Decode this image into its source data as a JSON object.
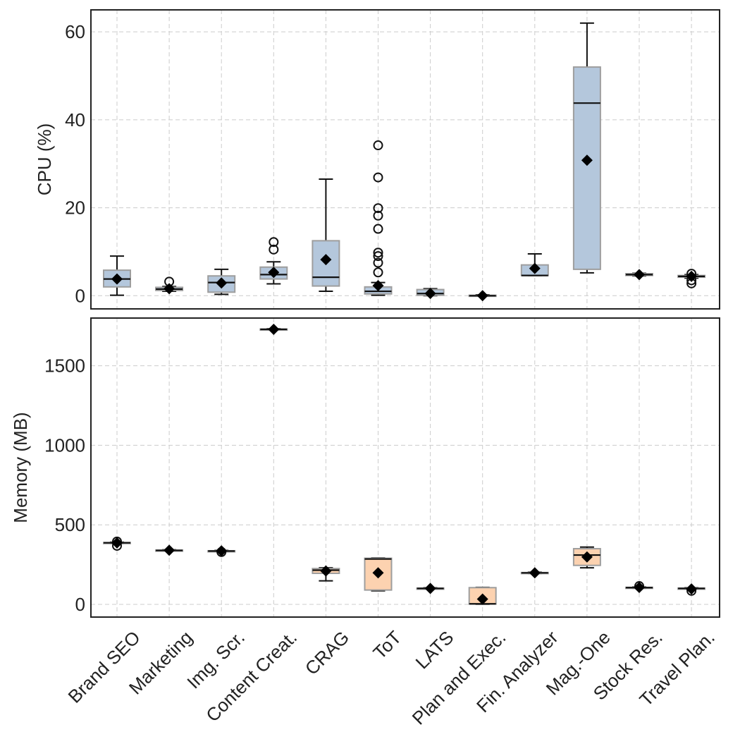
{
  "chart_data": [
    {
      "type": "box",
      "ylabel": "CPU (%)",
      "ylim": [
        -3,
        65
      ],
      "yticks": [
        0,
        20,
        40,
        60
      ],
      "box_color": "#b4c7dc",
      "categories": [
        "Brand SEO",
        "Marketing",
        "Img. Scr.",
        "Content Creat.",
        "CRAG",
        "ToT",
        "LATS",
        "Plan and Exec.",
        "Fin. Analyzer",
        "Mag.-One",
        "Stock Res.",
        "Travel Plan."
      ],
      "boxes": [
        {
          "q1": 2,
          "median": 3.8,
          "q3": 5.8,
          "whislo": 0.1,
          "whishi": 9,
          "mean": 3.8,
          "fliers": []
        },
        {
          "q1": 1.2,
          "median": 1.5,
          "q3": 1.9,
          "whislo": 1.0,
          "whishi": 2.1,
          "mean": 1.6,
          "fliers": [
            3.2
          ]
        },
        {
          "q1": 0.8,
          "median": 3.0,
          "q3": 4.5,
          "whislo": 0.3,
          "whishi": 6,
          "mean": 2.9,
          "fliers": []
        },
        {
          "q1": 3.8,
          "median": 4.8,
          "q3": 6.5,
          "whislo": 2.7,
          "whishi": 7.7,
          "mean": 5.3,
          "fliers": [
            10.5,
            12.2
          ]
        },
        {
          "q1": 2.2,
          "median": 4.2,
          "q3": 12.5,
          "whislo": 1.0,
          "whishi": 26.5,
          "mean": 8.2,
          "fliers": []
        },
        {
          "q1": 0.4,
          "median": 1.0,
          "q3": 2.0,
          "whislo": 0.1,
          "whishi": 3.0,
          "mean": 2.3,
          "fliers": [
            5.3,
            7.5,
            9.0,
            9.8,
            15.2,
            18.2,
            19.9,
            26.9,
            34.2
          ]
        },
        {
          "q1": 0.1,
          "median": 0.5,
          "q3": 1.4,
          "whislo": 0.0,
          "whishi": 1.6,
          "mean": 0.5,
          "fliers": []
        },
        {
          "q1": 0.0,
          "median": 0.0,
          "q3": 0.1,
          "whislo": 0.0,
          "whishi": 0.2,
          "mean": 0.0,
          "fliers": []
        },
        {
          "q1": 4.6,
          "median": 4.6,
          "q3": 7.0,
          "whislo": 4.6,
          "whishi": 9.5,
          "mean": 6.2,
          "fliers": []
        },
        {
          "q1": 6.0,
          "median": 43.8,
          "q3": 52.0,
          "whislo": 5.2,
          "whishi": 62.0,
          "mean": 30.8,
          "fliers": []
        },
        {
          "q1": 4.6,
          "median": 4.8,
          "q3": 5.0,
          "whislo": 4.5,
          "whishi": 5.1,
          "mean": 4.8,
          "fliers": []
        },
        {
          "q1": 4.2,
          "median": 4.4,
          "q3": 4.6,
          "whislo": 4.0,
          "whishi": 4.8,
          "mean": 4.4,
          "fliers": [
            2.8,
            3.5,
            5.0
          ]
        }
      ]
    },
    {
      "type": "box",
      "ylabel": "Memory (MB)",
      "ylim": [
        -80,
        1800
      ],
      "yticks": [
        0,
        500,
        1000,
        1500
      ],
      "box_color": "#fcd2b0",
      "categories": [
        "Brand SEO",
        "Marketing",
        "Img. Scr.",
        "Content Creat.",
        "CRAG",
        "ToT",
        "LATS",
        "Plan and Exec.",
        "Fin. Analyzer",
        "Mag.-One",
        "Stock Res.",
        "Travel Plan."
      ],
      "boxes": [
        {
          "q1": 385,
          "median": 387,
          "q3": 389,
          "whislo": 383,
          "whishi": 391,
          "mean": 386,
          "fliers": [
            368,
            395
          ]
        },
        {
          "q1": 337,
          "median": 339,
          "q3": 341,
          "whislo": 335,
          "whishi": 343,
          "mean": 340,
          "fliers": []
        },
        {
          "q1": 333,
          "median": 335,
          "q3": 337,
          "whislo": 331,
          "whishi": 339,
          "mean": 336,
          "fliers": [
            329
          ]
        },
        {
          "q1": 1727,
          "median": 1729,
          "q3": 1731,
          "whislo": 1725,
          "whishi": 1733,
          "mean": 1729,
          "fliers": []
        },
        {
          "q1": 195,
          "median": 215,
          "q3": 225,
          "whislo": 148,
          "whishi": 230,
          "mean": 210,
          "fliers": []
        },
        {
          "q1": 90,
          "median": 285,
          "q3": 290,
          "whislo": 85,
          "whishi": 292,
          "mean": 198,
          "fliers": []
        },
        {
          "q1": 98,
          "median": 100,
          "q3": 102,
          "whislo": 96,
          "whishi": 104,
          "mean": 100,
          "fliers": []
        },
        {
          "q1": 2,
          "median": 3,
          "q3": 105,
          "whislo": 1,
          "whishi": 107,
          "mean": 33,
          "fliers": []
        },
        {
          "q1": 196,
          "median": 198,
          "q3": 200,
          "whislo": 194,
          "whishi": 202,
          "mean": 198,
          "fliers": []
        },
        {
          "q1": 245,
          "median": 310,
          "q3": 350,
          "whislo": 230,
          "whishi": 360,
          "mean": 298,
          "fliers": []
        },
        {
          "q1": 103,
          "median": 105,
          "q3": 107,
          "whislo": 101,
          "whishi": 109,
          "mean": 106,
          "fliers": [
            115
          ]
        },
        {
          "q1": 98,
          "median": 100,
          "q3": 102,
          "whislo": 96,
          "whishi": 104,
          "mean": 97,
          "fliers": [
            85
          ]
        }
      ]
    }
  ]
}
